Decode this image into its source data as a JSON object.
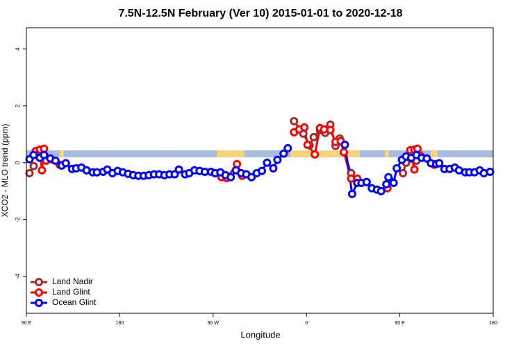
{
  "chart_data": {
    "type": "line",
    "title": "7.5N-12.5N February (Ver 10)   2015-01-01 to 2020-12-18",
    "x_label": "Longitude",
    "y_label": "XCO2 - MLO trend (ppm)",
    "xlim": [
      90,
      540
    ],
    "ylim": [
      -5.3,
      4.75
    ],
    "xticks": [
      {
        "value": 90,
        "label": "90 E"
      },
      {
        "value": 180,
        "label": "180"
      },
      {
        "value": 270,
        "label": "90 W"
      },
      {
        "value": 360,
        "label": "0"
      },
      {
        "value": 450,
        "label": "90 E"
      },
      {
        "value": 540,
        "label": "180"
      }
    ],
    "yticks": [
      -4,
      -2,
      0,
      2,
      4
    ],
    "legend": "bottom-left",
    "series": [
      {
        "name": "Land Nadir",
        "color": "#a52a2a",
        "x": [
          93,
          97,
          null,
          348,
          357,
          363,
          367,
          373,
          378,
          383,
          388,
          392,
          403,
          null,
          453,
          456,
          466
        ],
        "values": [
          -0.37,
          -0.12,
          null,
          1.46,
          1.02,
          0.61,
          0.9,
          1.15,
          1.05,
          1.34,
          0.59,
          0.85,
          -0.37,
          null,
          -0.37,
          0,
          0.07
        ]
      },
      {
        "name": "Land Glint",
        "color": "#ff0000",
        "x": [
          99,
          103,
          105,
          107,
          109,
          122,
          null,
          278,
          283,
          293,
          298,
          null,
          348,
          353,
          358,
          361,
          368,
          373,
          377,
          383,
          388,
          393,
          396,
          403,
          409,
          null,
          438,
          440,
          null,
          460,
          464,
          464,
          467,
          483
        ],
        "values": [
          0.41,
          0.46,
          -0.27,
          0.49,
          0.07,
          -0.07,
          null,
          -0.51,
          -0.54,
          -0.05,
          -0.46,
          null,
          1.07,
          1.17,
          1.24,
          0.63,
          0.29,
          1.22,
          1.17,
          1.15,
          0.73,
          0.76,
          0.37,
          -0.56,
          -0.56,
          null,
          -0.9,
          -0.61,
          null,
          0.44,
          -0.24,
          0.46,
          0.49,
          -0.07
        ]
      },
      {
        "name": "Ocean Glint",
        "color": "#0000ff",
        "x": [
          93,
          97,
          103,
          107,
          113,
          118,
          124,
          128,
          134,
          138,
          143,
          148,
          154,
          158,
          164,
          168,
          173,
          178,
          183,
          188,
          193,
          198,
          203,
          208,
          213,
          218,
          223,
          228,
          233,
          237,
          243,
          247,
          252,
          257,
          262,
          268,
          272,
          277,
          282,
          287,
          292,
          297,
          302,
          307,
          312,
          317,
          322,
          328,
          332,
          338,
          342,
          null,
          397,
          404,
          409,
          413,
          418,
          423,
          428,
          432,
          437,
          439,
          444,
          447,
          452,
          456,
          461,
          466,
          471,
          476,
          480,
          485,
          488,
          493,
          498,
          503,
          507,
          513,
          517,
          522,
          527,
          531,
          537
        ],
        "values": [
          0.12,
          0.27,
          0.17,
          0.27,
          0.15,
          0.07,
          -0.1,
          -0.02,
          -0.22,
          -0.2,
          -0.17,
          -0.27,
          -0.34,
          -0.34,
          -0.32,
          -0.24,
          -0.37,
          -0.29,
          -0.34,
          -0.39,
          -0.44,
          -0.46,
          -0.46,
          -0.44,
          -0.41,
          -0.41,
          -0.44,
          -0.41,
          -0.41,
          -0.24,
          -0.41,
          -0.37,
          -0.27,
          -0.29,
          -0.32,
          -0.32,
          -0.37,
          -0.34,
          -0.44,
          -0.51,
          -0.27,
          -0.37,
          -0.41,
          -0.51,
          -0.37,
          -0.29,
          0,
          -0.2,
          0.1,
          0.32,
          0.51,
          null,
          0.63,
          -1.1,
          -0.71,
          -0.71,
          -0.68,
          -0.9,
          -0.95,
          -1.0,
          -0.76,
          -0.51,
          -0.71,
          -0.2,
          0.1,
          0.22,
          0.17,
          0.27,
          0.17,
          0.15,
          -0.02,
          -0.05,
          -0.02,
          -0.22,
          -0.22,
          -0.17,
          -0.27,
          -0.34,
          -0.34,
          -0.34,
          -0.27,
          -0.37,
          -0.32
        ]
      }
    ]
  }
}
